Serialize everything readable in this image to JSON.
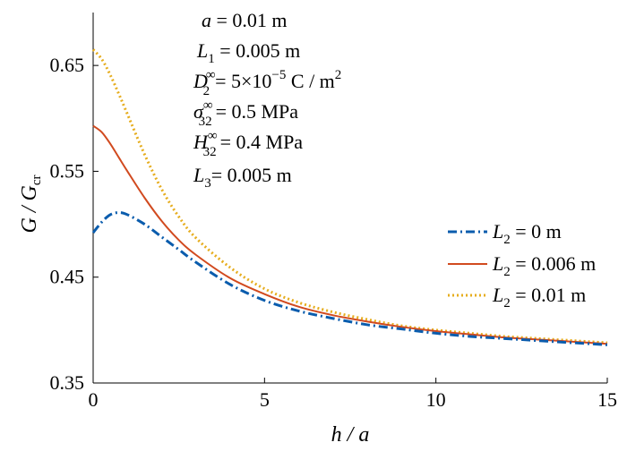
{
  "chart_data": {
    "type": "line",
    "xlabel": "h / a",
    "ylabel": "G / G_cr",
    "xlim": [
      0,
      15
    ],
    "ylim": [
      0.35,
      0.7
    ],
    "x_ticks": [
      0,
      5,
      10,
      15
    ],
    "y_ticks": [
      0.35,
      0.45,
      0.55,
      0.65
    ],
    "grid": false,
    "legend_position": "right",
    "annotations": {
      "a": "a = 0.01 m",
      "L1": "L1 = 0.005 m",
      "D": "D32∞ = 5×10^-5 C / m^2",
      "sigma": "σ32∞ = 0.5 MPa",
      "H": "H32∞ = 0.4 MPa",
      "L3": "L3 = 0.005 m"
    },
    "series": [
      {
        "name": "L2 = 0 m",
        "color": "#0a5cad",
        "style": "dashdot",
        "x": [
          0,
          0.25,
          0.5,
          0.75,
          1,
          1.5,
          2,
          2.5,
          3,
          4,
          5,
          6,
          7,
          8,
          9,
          10,
          11,
          12,
          13,
          14,
          15
        ],
        "y": [
          0.492,
          0.502,
          0.509,
          0.511,
          0.509,
          0.5,
          0.488,
          0.476,
          0.464,
          0.443,
          0.428,
          0.418,
          0.411,
          0.405,
          0.401,
          0.397,
          0.394,
          0.392,
          0.39,
          0.388,
          0.386
        ]
      },
      {
        "name": "L2 = 0.006 m",
        "color": "#d14a1f",
        "style": "solid",
        "x": [
          0,
          0.25,
          0.5,
          0.75,
          1,
          1.5,
          2,
          2.5,
          3,
          4,
          5,
          6,
          7,
          8,
          9,
          10,
          11,
          12,
          13,
          14,
          15
        ],
        "y": [
          0.593,
          0.587,
          0.576,
          0.563,
          0.55,
          0.525,
          0.503,
          0.485,
          0.471,
          0.449,
          0.434,
          0.422,
          0.414,
          0.408,
          0.403,
          0.399,
          0.396,
          0.393,
          0.391,
          0.389,
          0.387
        ]
      },
      {
        "name": "L2 = 0.01 m",
        "color": "#e6ad1e",
        "style": "dotted",
        "x": [
          0,
          0.25,
          0.5,
          0.75,
          1,
          1.5,
          2,
          2.5,
          3,
          4,
          5,
          6,
          7,
          8,
          9,
          10,
          11,
          12,
          13,
          14,
          15
        ],
        "y": [
          0.665,
          0.656,
          0.641,
          0.623,
          0.604,
          0.566,
          0.533,
          0.507,
          0.487,
          0.459,
          0.439,
          0.426,
          0.417,
          0.41,
          0.404,
          0.4,
          0.397,
          0.394,
          0.392,
          0.39,
          0.388
        ]
      }
    ]
  }
}
